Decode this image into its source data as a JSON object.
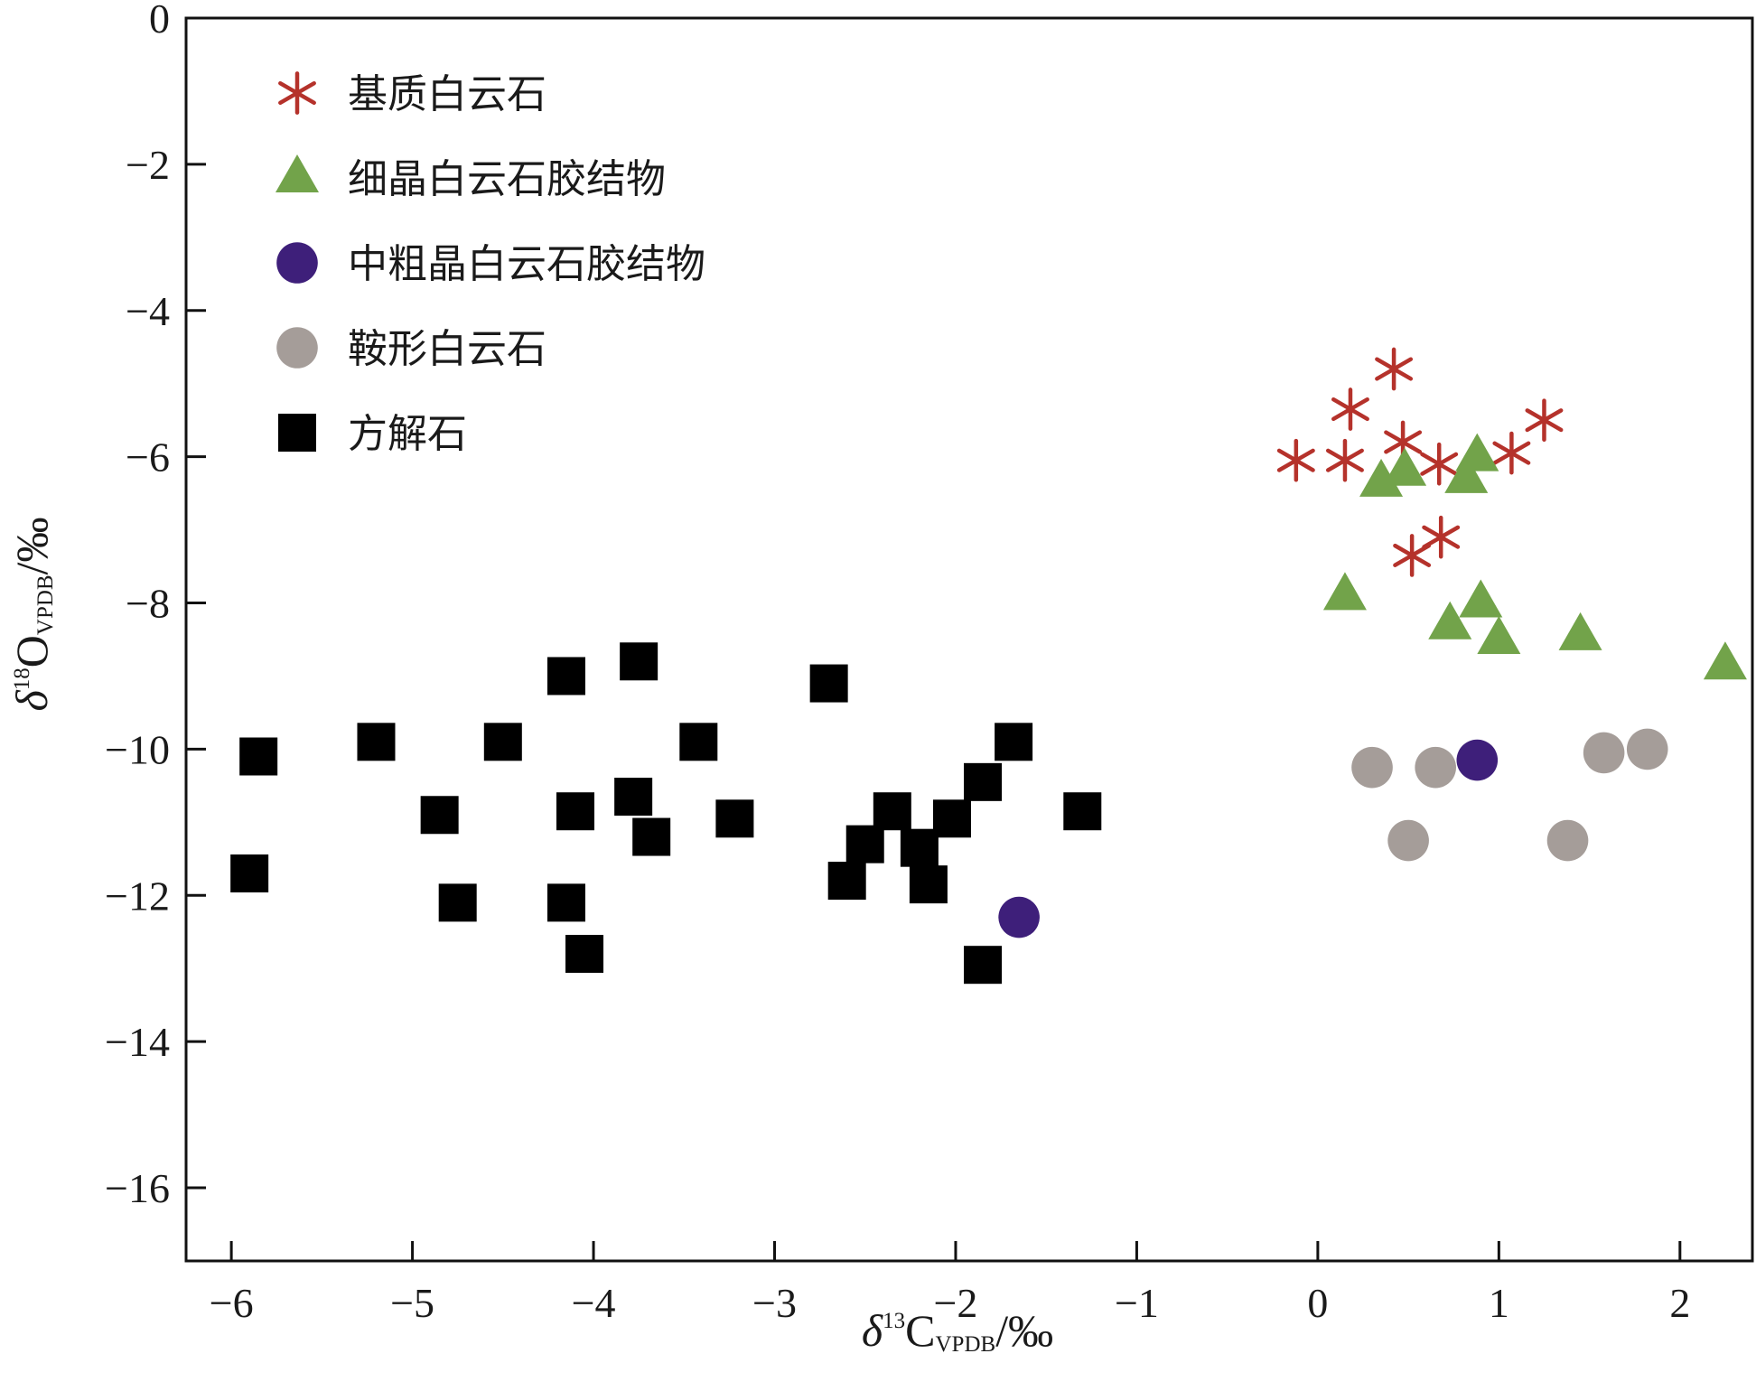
{
  "chart_data": {
    "type": "scatter",
    "title": "",
    "xlabel": {
      "delta": "δ",
      "sup": "13",
      "element": "C",
      "sub": "VPDB",
      "unit": "/‰"
    },
    "ylabel": {
      "delta": "δ",
      "sup": "18",
      "element": "O",
      "sub": "VPDB",
      "unit": "/‰"
    },
    "xlim": [
      -6.25,
      2.4
    ],
    "ylim": [
      -17,
      0
    ],
    "xticks": [
      -6,
      -5,
      -4,
      -3,
      -2,
      -1,
      0,
      1,
      2
    ],
    "xtick_labels": [
      "−6",
      "−5",
      "−4",
      "−3",
      "−2",
      "−1",
      "0",
      "1",
      "2"
    ],
    "yticks": [
      0,
      -2,
      -4,
      -6,
      -8,
      -10,
      -12,
      -14,
      -16
    ],
    "ytick_labels": [
      "0",
      "−2",
      "−4",
      "−6",
      "−8",
      "−10",
      "−12",
      "−14",
      "−16"
    ],
    "grid": false,
    "legend_position": "top-left",
    "series": [
      {
        "name": "基质白云石",
        "marker": "asterisk",
        "color": "#b5322b",
        "points": [
          {
            "x": 0.42,
            "y": -4.8
          },
          {
            "x": 0.18,
            "y": -5.35
          },
          {
            "x": -0.12,
            "y": -6.05
          },
          {
            "x": 0.15,
            "y": -6.05
          },
          {
            "x": 0.47,
            "y": -5.8
          },
          {
            "x": 0.67,
            "y": -6.1
          },
          {
            "x": 1.07,
            "y": -5.95
          },
          {
            "x": 1.25,
            "y": -5.5
          },
          {
            "x": 0.52,
            "y": -7.35
          },
          {
            "x": 0.68,
            "y": -7.1
          }
        ]
      },
      {
        "name": "细晶白云石胶结物",
        "marker": "triangle",
        "color": "#72a34a",
        "points": [
          {
            "x": 0.35,
            "y": -6.35
          },
          {
            "x": 0.48,
            "y": -6.2
          },
          {
            "x": 0.82,
            "y": -6.3
          },
          {
            "x": 0.88,
            "y": -6.0
          },
          {
            "x": 0.15,
            "y": -7.9
          },
          {
            "x": 0.73,
            "y": -8.3
          },
          {
            "x": 0.9,
            "y": -8.0
          },
          {
            "x": 1.0,
            "y": -8.5
          },
          {
            "x": 1.45,
            "y": -8.45
          },
          {
            "x": 2.25,
            "y": -8.85
          }
        ]
      },
      {
        "name": "中粗晶白云石胶结物",
        "marker": "circle",
        "color": "#3e1f7a",
        "points": [
          {
            "x": 0.88,
            "y": -10.15
          },
          {
            "x": -1.65,
            "y": -12.3
          }
        ]
      },
      {
        "name": "鞍形白云石",
        "marker": "circle",
        "color": "#a59d99",
        "points": [
          {
            "x": 0.3,
            "y": -10.25
          },
          {
            "x": 0.65,
            "y": -10.25
          },
          {
            "x": 1.58,
            "y": -10.05
          },
          {
            "x": 1.82,
            "y": -10.0
          },
          {
            "x": 0.5,
            "y": -11.25
          },
          {
            "x": 1.38,
            "y": -11.25
          }
        ]
      },
      {
        "name": "方解石",
        "marker": "square",
        "color": "#000000",
        "points": [
          {
            "x": -5.85,
            "y": -10.1
          },
          {
            "x": -5.9,
            "y": -11.7
          },
          {
            "x": -5.2,
            "y": -9.9
          },
          {
            "x": -4.85,
            "y": -10.9
          },
          {
            "x": -4.75,
            "y": -12.1
          },
          {
            "x": -4.5,
            "y": -9.9
          },
          {
            "x": -4.15,
            "y": -9.0
          },
          {
            "x": -4.1,
            "y": -10.85
          },
          {
            "x": -4.15,
            "y": -12.1
          },
          {
            "x": -4.05,
            "y": -12.8
          },
          {
            "x": -3.75,
            "y": -8.8
          },
          {
            "x": -3.78,
            "y": -10.65
          },
          {
            "x": -3.68,
            "y": -11.2
          },
          {
            "x": -3.42,
            "y": -9.9
          },
          {
            "x": -3.22,
            "y": -10.95
          },
          {
            "x": -2.7,
            "y": -9.1
          },
          {
            "x": -2.6,
            "y": -11.8
          },
          {
            "x": -2.5,
            "y": -11.3
          },
          {
            "x": -2.35,
            "y": -10.85
          },
          {
            "x": -2.2,
            "y": -11.35
          },
          {
            "x": -2.15,
            "y": -11.85
          },
          {
            "x": -2.02,
            "y": -10.95
          },
          {
            "x": -1.85,
            "y": -10.45
          },
          {
            "x": -1.68,
            "y": -9.9
          },
          {
            "x": -1.85,
            "y": -12.95
          },
          {
            "x": -1.3,
            "y": -10.85
          }
        ]
      }
    ]
  }
}
